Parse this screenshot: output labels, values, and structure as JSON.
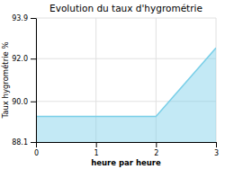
{
  "chart_data": {
    "type": "area",
    "title": "Evolution du taux d'hygrométrie",
    "xlabel": "heure par heure",
    "ylabel": "Taux hygrométrie %",
    "x": [
      0,
      2,
      3
    ],
    "values": [
      89.3,
      89.3,
      92.5
    ],
    "color": "#7acfe8",
    "xlim": [
      0,
      3
    ],
    "ylim": [
      88.1,
      93.9
    ],
    "xticks": [
      0,
      1,
      2,
      3
    ],
    "yticks": [
      88.1,
      {
        "value": 90.0,
        "label": "90.0"
      },
      {
        "value": 92.0,
        "label": "92.0"
      },
      93.9
    ],
    "grid": true
  }
}
